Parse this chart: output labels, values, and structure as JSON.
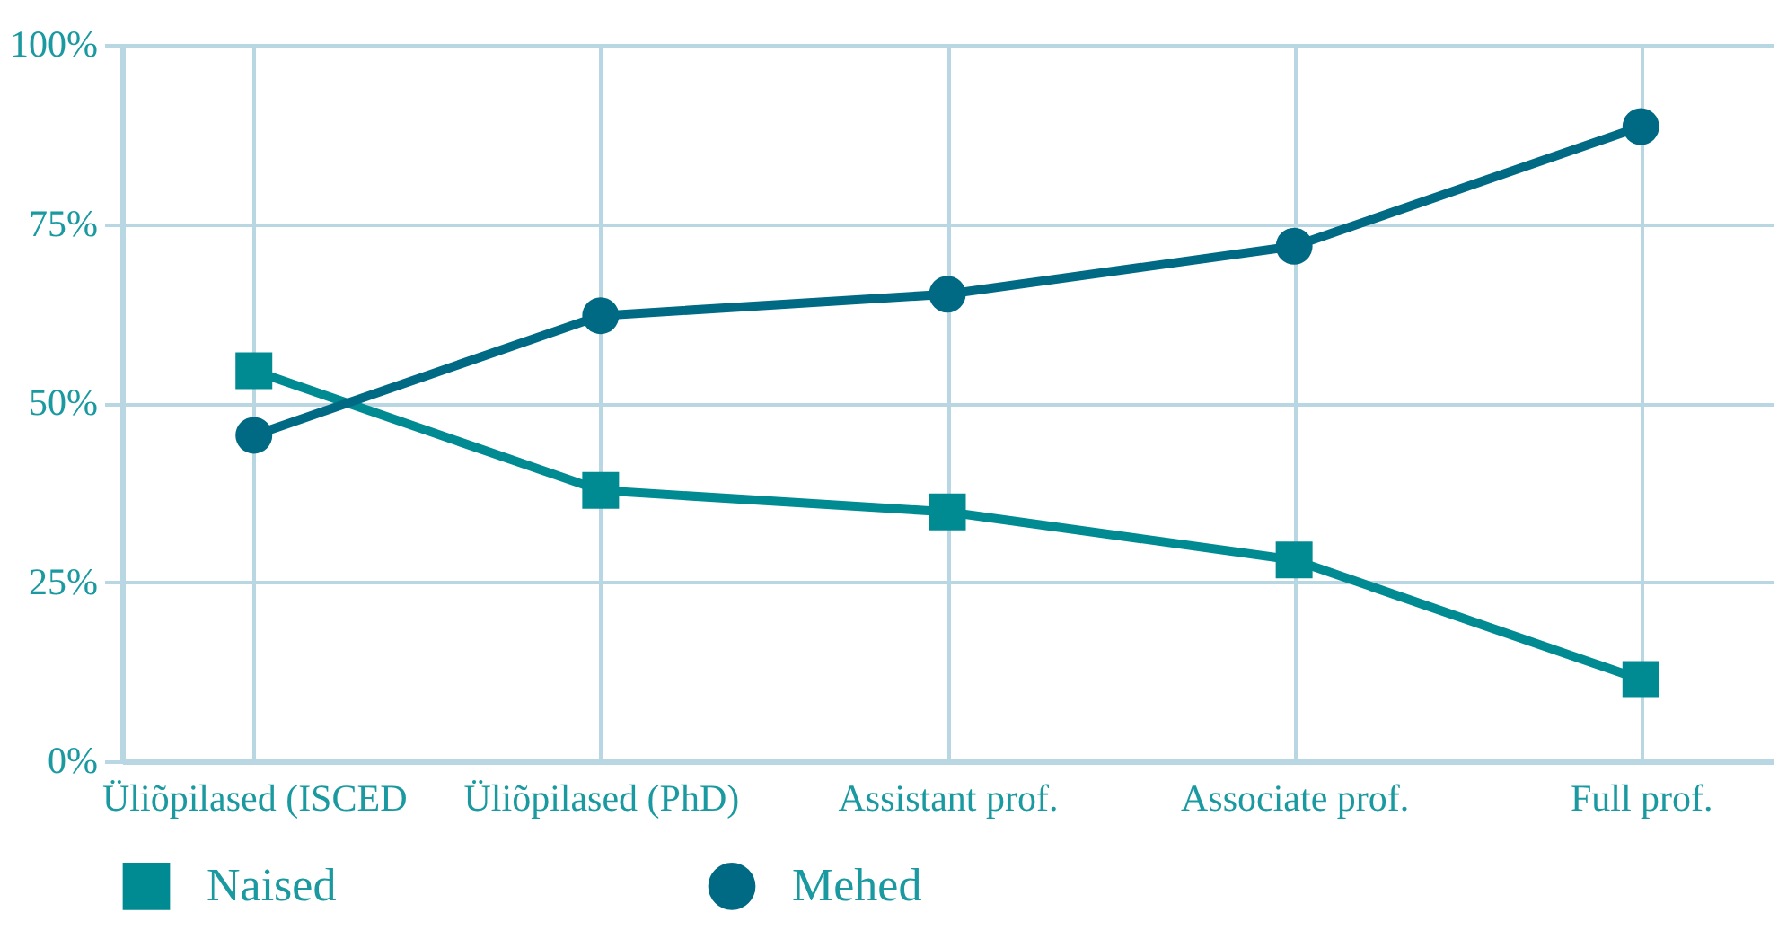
{
  "chart_data": {
    "type": "line",
    "categories": [
      "Üliõpilased (ISCED",
      "Üliõpilased (PhD)",
      "Assistant prof.",
      "Associate prof.",
      "Full prof."
    ],
    "series": [
      {
        "name": "Naised",
        "color": "#008b93",
        "marker": "square",
        "values": [
          54.5,
          37.8,
          34.8,
          28.1,
          11.4
        ]
      },
      {
        "name": "Mehed",
        "color": "#006a85",
        "marker": "circle",
        "values": [
          45.5,
          62.2,
          65.2,
          71.9,
          88.6
        ]
      }
    ],
    "ylim": [
      0,
      100
    ],
    "yticks": [
      {
        "value": 0,
        "label": "0%"
      },
      {
        "value": 25,
        "label": "25%"
      },
      {
        "value": 50,
        "label": "50%"
      },
      {
        "value": 75,
        "label": "75%"
      },
      {
        "value": 100,
        "label": "100%"
      }
    ],
    "grid": true,
    "legend": "bottom",
    "line_style": "solid"
  }
}
